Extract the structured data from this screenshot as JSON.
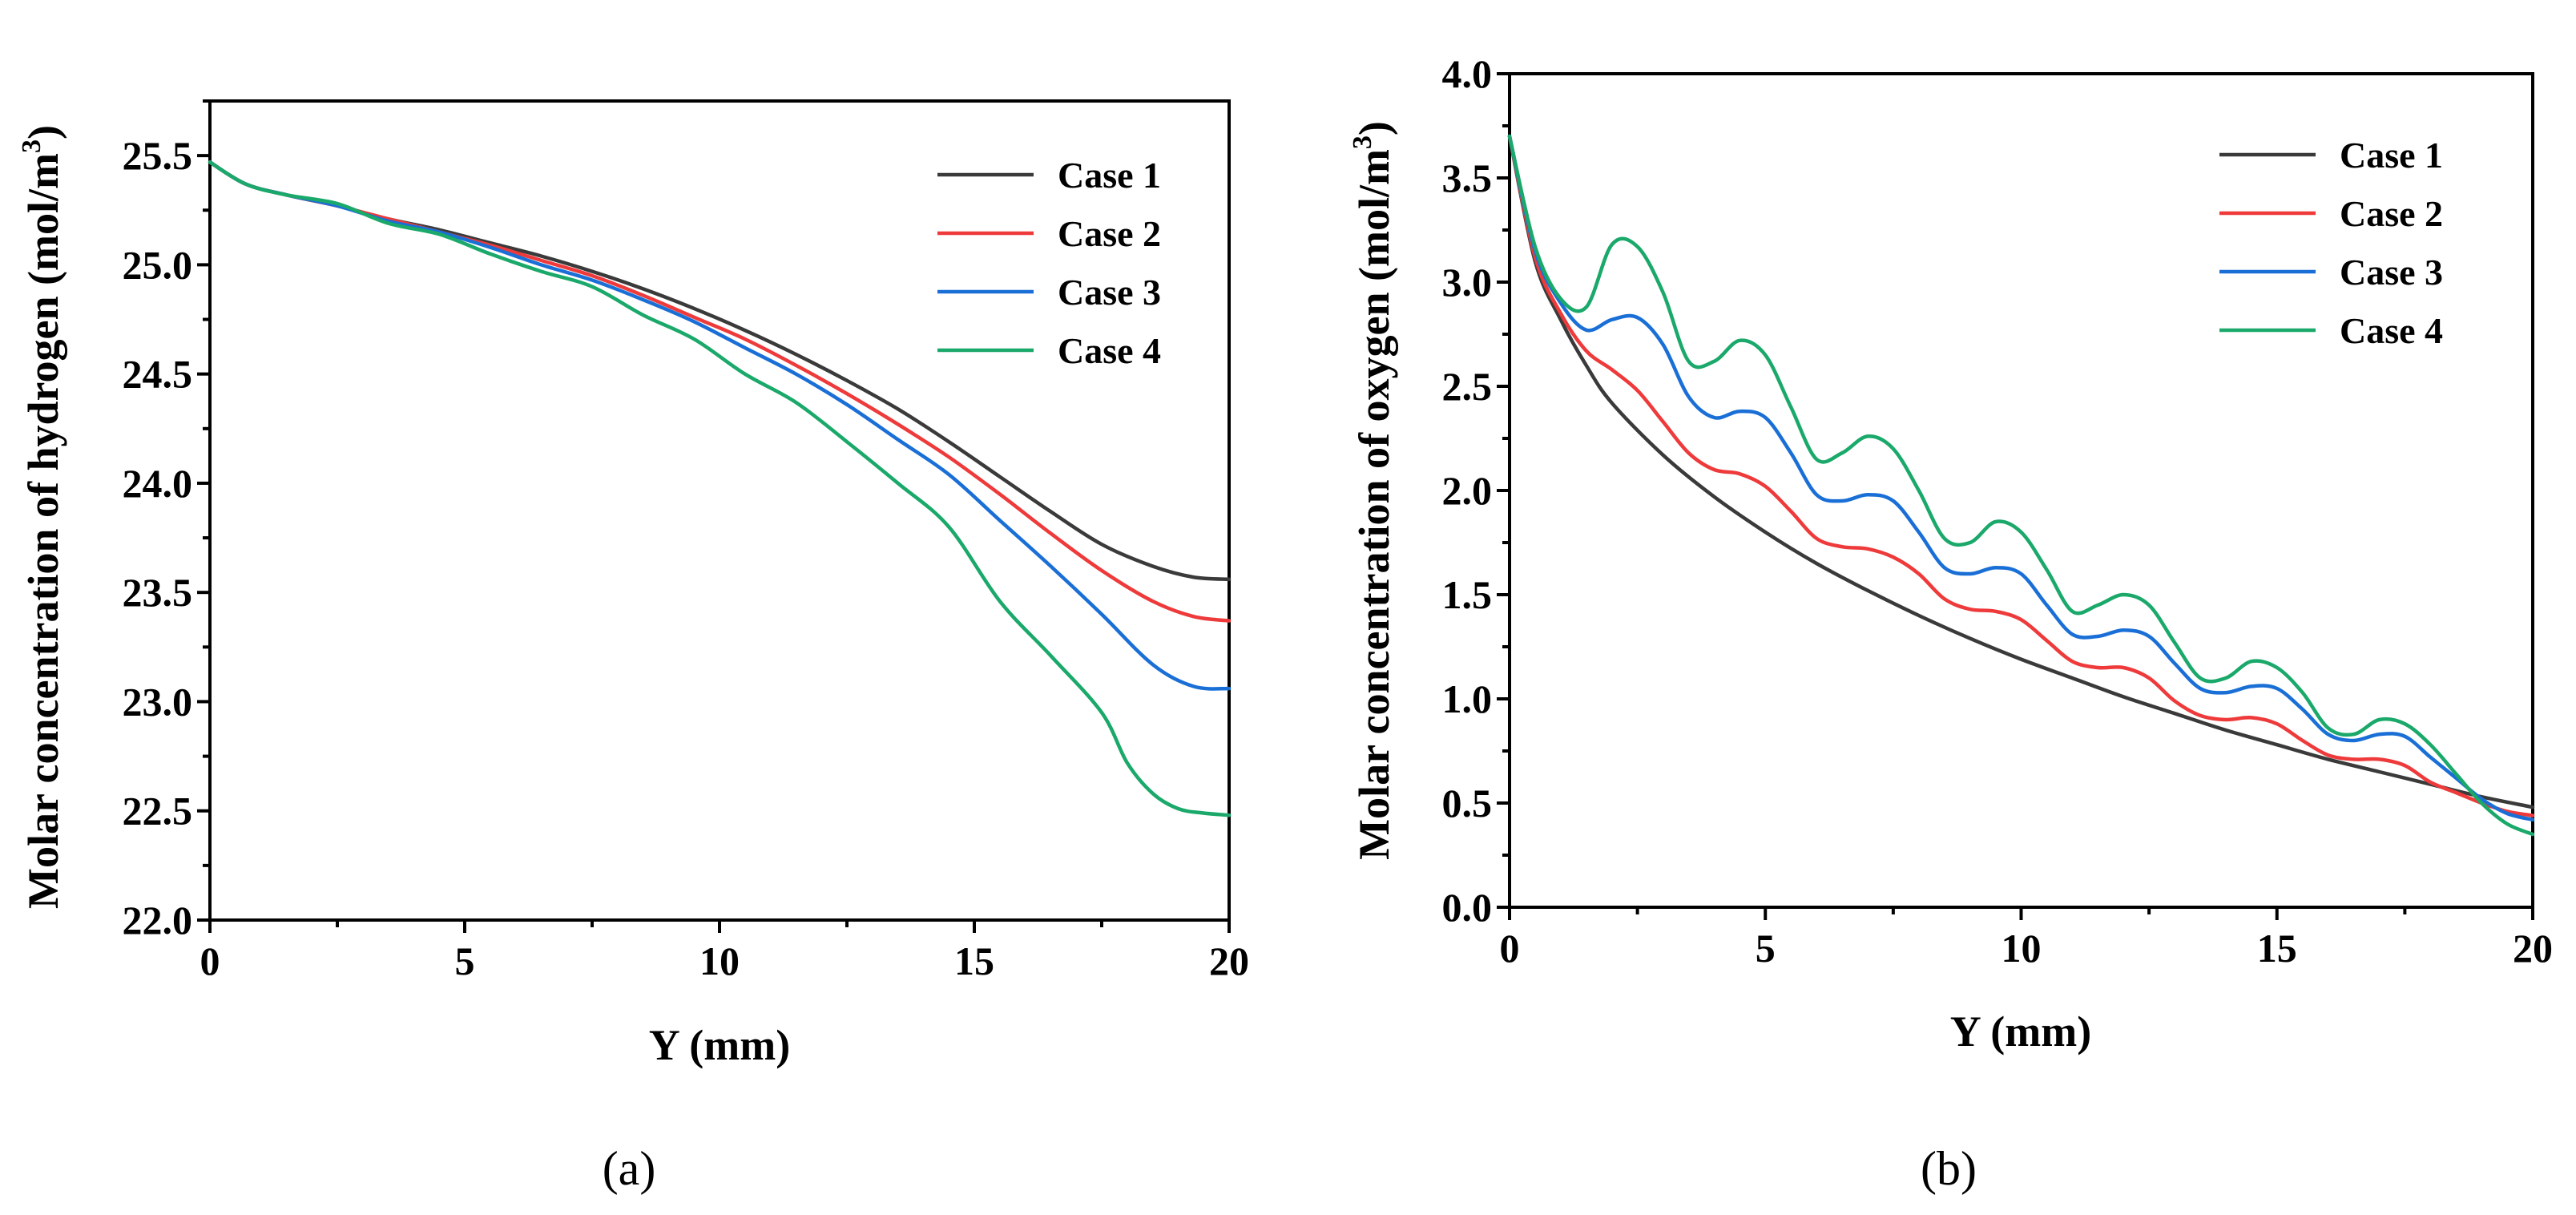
{
  "chart_data": [
    {
      "type": "line",
      "panel_label": "(a)",
      "xlabel": "Y (mm)",
      "ylabel": "Molar concentration of hydrogen (mol/m",
      "ylabel_sup": "3",
      "ylabel_close": ")",
      "xlim": [
        0,
        20
      ],
      "ylim": [
        22.0,
        25.75
      ],
      "xticks": [
        "0",
        "5",
        "10",
        "15",
        "20"
      ],
      "yticks": [
        "22.0",
        "22.5",
        "23.0",
        "23.5",
        "24.0",
        "24.5",
        "25.0",
        "25.5"
      ],
      "legend_position": "top-right",
      "series": [
        {
          "name": "Case 1",
          "color": "#3a3a3a",
          "x": [
            0,
            0.7,
            1.5,
            2.5,
            3.5,
            4.5,
            5.5,
            6.5,
            7.5,
            8.5,
            9.5,
            10.5,
            11.5,
            12.5,
            13.5,
            14.5,
            15.5,
            16.5,
            17.5,
            18.5,
            19.3,
            20
          ],
          "y": [
            25.47,
            25.37,
            25.32,
            25.27,
            25.21,
            25.16,
            25.1,
            25.04,
            24.97,
            24.89,
            24.8,
            24.7,
            24.59,
            24.47,
            24.34,
            24.19,
            24.03,
            23.87,
            23.72,
            23.62,
            23.57,
            23.56
          ]
        },
        {
          "name": "Case 2",
          "color": "#ee3a3a",
          "x": [
            0,
            0.7,
            1.5,
            2.5,
            3.5,
            4.5,
            5.5,
            6.5,
            7.5,
            8.5,
            9.5,
            10.5,
            11.5,
            12.5,
            13.5,
            14.5,
            15.5,
            16.5,
            17.5,
            18.5,
            19.3,
            20
          ],
          "y": [
            25.47,
            25.37,
            25.32,
            25.27,
            25.21,
            25.15,
            25.09,
            25.02,
            24.95,
            24.86,
            24.76,
            24.66,
            24.54,
            24.41,
            24.27,
            24.12,
            23.95,
            23.77,
            23.6,
            23.46,
            23.39,
            23.37
          ]
        },
        {
          "name": "Case 3",
          "color": "#1a6fd6",
          "x": [
            0,
            0.7,
            1.5,
            2.5,
            3.5,
            4.5,
            5.5,
            6.5,
            7.5,
            8.5,
            9.5,
            10.5,
            11.5,
            12.5,
            13.5,
            14.5,
            15.5,
            16.5,
            17.5,
            18.5,
            19.3,
            20
          ],
          "y": [
            25.47,
            25.37,
            25.32,
            25.27,
            25.2,
            25.15,
            25.08,
            25.0,
            24.93,
            24.84,
            24.74,
            24.62,
            24.5,
            24.36,
            24.2,
            24.04,
            23.83,
            23.62,
            23.4,
            23.17,
            23.07,
            23.06
          ]
        },
        {
          "name": "Case 4",
          "color": "#1aa96a",
          "x": [
            0,
            0.7,
            1.5,
            2.5,
            3.5,
            4.5,
            5.5,
            6.5,
            7.5,
            8.5,
            9.5,
            10.5,
            11.5,
            12.5,
            13.5,
            14.5,
            15.5,
            16.5,
            17.5,
            18.0,
            18.5,
            19.0,
            19.5,
            20
          ],
          "y": [
            25.47,
            25.37,
            25.32,
            25.28,
            25.19,
            25.14,
            25.05,
            24.97,
            24.9,
            24.77,
            24.66,
            24.5,
            24.37,
            24.19,
            24.0,
            23.8,
            23.46,
            23.21,
            22.95,
            22.72,
            22.58,
            22.51,
            22.49,
            22.48
          ]
        }
      ]
    },
    {
      "type": "line",
      "panel_label": "(b)",
      "xlabel": "Y (mm)",
      "ylabel": "Molar concentration of oxygen (mol/m",
      "ylabel_sup": "3",
      "ylabel_close": ")",
      "xlim": [
        0,
        20
      ],
      "ylim": [
        0.0,
        4.0
      ],
      "xticks": [
        "0",
        "5",
        "10",
        "15",
        "20"
      ],
      "yticks": [
        "0.0",
        "0.5",
        "1.0",
        "1.5",
        "2.0",
        "2.5",
        "3.0",
        "3.5",
        "4.0"
      ],
      "legend_position": "top-right",
      "series": [
        {
          "name": "Case 1",
          "color": "#3a3a3a",
          "x": [
            0,
            0.5,
            1,
            1.5,
            2,
            3,
            4,
            5,
            6,
            7,
            8,
            9,
            10,
            11,
            12,
            13,
            14,
            15,
            16,
            17,
            18,
            19,
            20
          ],
          "y": [
            3.7,
            3.1,
            2.82,
            2.6,
            2.42,
            2.17,
            1.97,
            1.8,
            1.65,
            1.52,
            1.4,
            1.29,
            1.19,
            1.1,
            1.01,
            0.93,
            0.85,
            0.78,
            0.71,
            0.65,
            0.59,
            0.53,
            0.48
          ]
        },
        {
          "name": "Case 2",
          "color": "#ee3a3a",
          "x": [
            0,
            0.5,
            1,
            1.5,
            2,
            2.5,
            3,
            3.5,
            4,
            4.5,
            5,
            5.5,
            6,
            6.5,
            7,
            7.5,
            8,
            8.5,
            9,
            9.5,
            10,
            10.5,
            11,
            11.5,
            12,
            12.5,
            13,
            13.5,
            14,
            14.5,
            15,
            15.5,
            16,
            16.5,
            17,
            17.5,
            18,
            18.5,
            19,
            19.5,
            20
          ],
          "y": [
            3.7,
            3.12,
            2.85,
            2.67,
            2.58,
            2.48,
            2.33,
            2.18,
            2.1,
            2.08,
            2.02,
            1.9,
            1.77,
            1.73,
            1.72,
            1.68,
            1.6,
            1.48,
            1.43,
            1.42,
            1.38,
            1.28,
            1.18,
            1.15,
            1.15,
            1.1,
            0.99,
            0.92,
            0.9,
            0.91,
            0.88,
            0.8,
            0.73,
            0.71,
            0.71,
            0.68,
            0.6,
            0.55,
            0.5,
            0.46,
            0.44
          ]
        },
        {
          "name": "Case 3",
          "color": "#1a6fd6",
          "x": [
            0,
            0.5,
            1,
            1.5,
            2,
            2.5,
            3,
            3.5,
            4,
            4.5,
            5,
            5.5,
            6,
            6.5,
            7,
            7.5,
            8,
            8.5,
            9,
            9.5,
            10,
            10.5,
            11,
            11.5,
            12,
            12.5,
            13,
            13.5,
            14,
            14.5,
            15,
            15.5,
            16,
            16.5,
            17,
            17.5,
            18,
            18.5,
            19,
            19.5,
            20
          ],
          "y": [
            3.7,
            3.15,
            2.9,
            2.77,
            2.82,
            2.83,
            2.7,
            2.45,
            2.35,
            2.38,
            2.35,
            2.18,
            1.98,
            1.95,
            1.98,
            1.95,
            1.8,
            1.63,
            1.6,
            1.63,
            1.6,
            1.45,
            1.31,
            1.3,
            1.33,
            1.3,
            1.17,
            1.05,
            1.03,
            1.06,
            1.05,
            0.95,
            0.83,
            0.8,
            0.83,
            0.82,
            0.72,
            0.62,
            0.52,
            0.45,
            0.42
          ]
        },
        {
          "name": "Case 4",
          "color": "#1aa96a",
          "x": [
            0,
            0.5,
            1,
            1.5,
            2,
            2.5,
            3,
            3.5,
            4,
            4.5,
            5,
            5.5,
            6,
            6.5,
            7,
            7.5,
            8,
            8.5,
            9,
            9.5,
            10,
            10.5,
            11,
            11.5,
            12,
            12.5,
            13,
            13.5,
            14,
            14.5,
            15,
            15.5,
            16,
            16.5,
            17,
            17.5,
            18,
            18.5,
            19,
            19.5,
            20
          ],
          "y": [
            3.7,
            3.17,
            2.92,
            2.88,
            3.18,
            3.17,
            2.95,
            2.62,
            2.62,
            2.72,
            2.65,
            2.4,
            2.15,
            2.18,
            2.26,
            2.2,
            2.0,
            1.77,
            1.75,
            1.85,
            1.8,
            1.62,
            1.42,
            1.45,
            1.5,
            1.45,
            1.27,
            1.1,
            1.1,
            1.18,
            1.15,
            1.03,
            0.86,
            0.83,
            0.9,
            0.88,
            0.78,
            0.64,
            0.5,
            0.4,
            0.35
          ]
        }
      ]
    }
  ]
}
